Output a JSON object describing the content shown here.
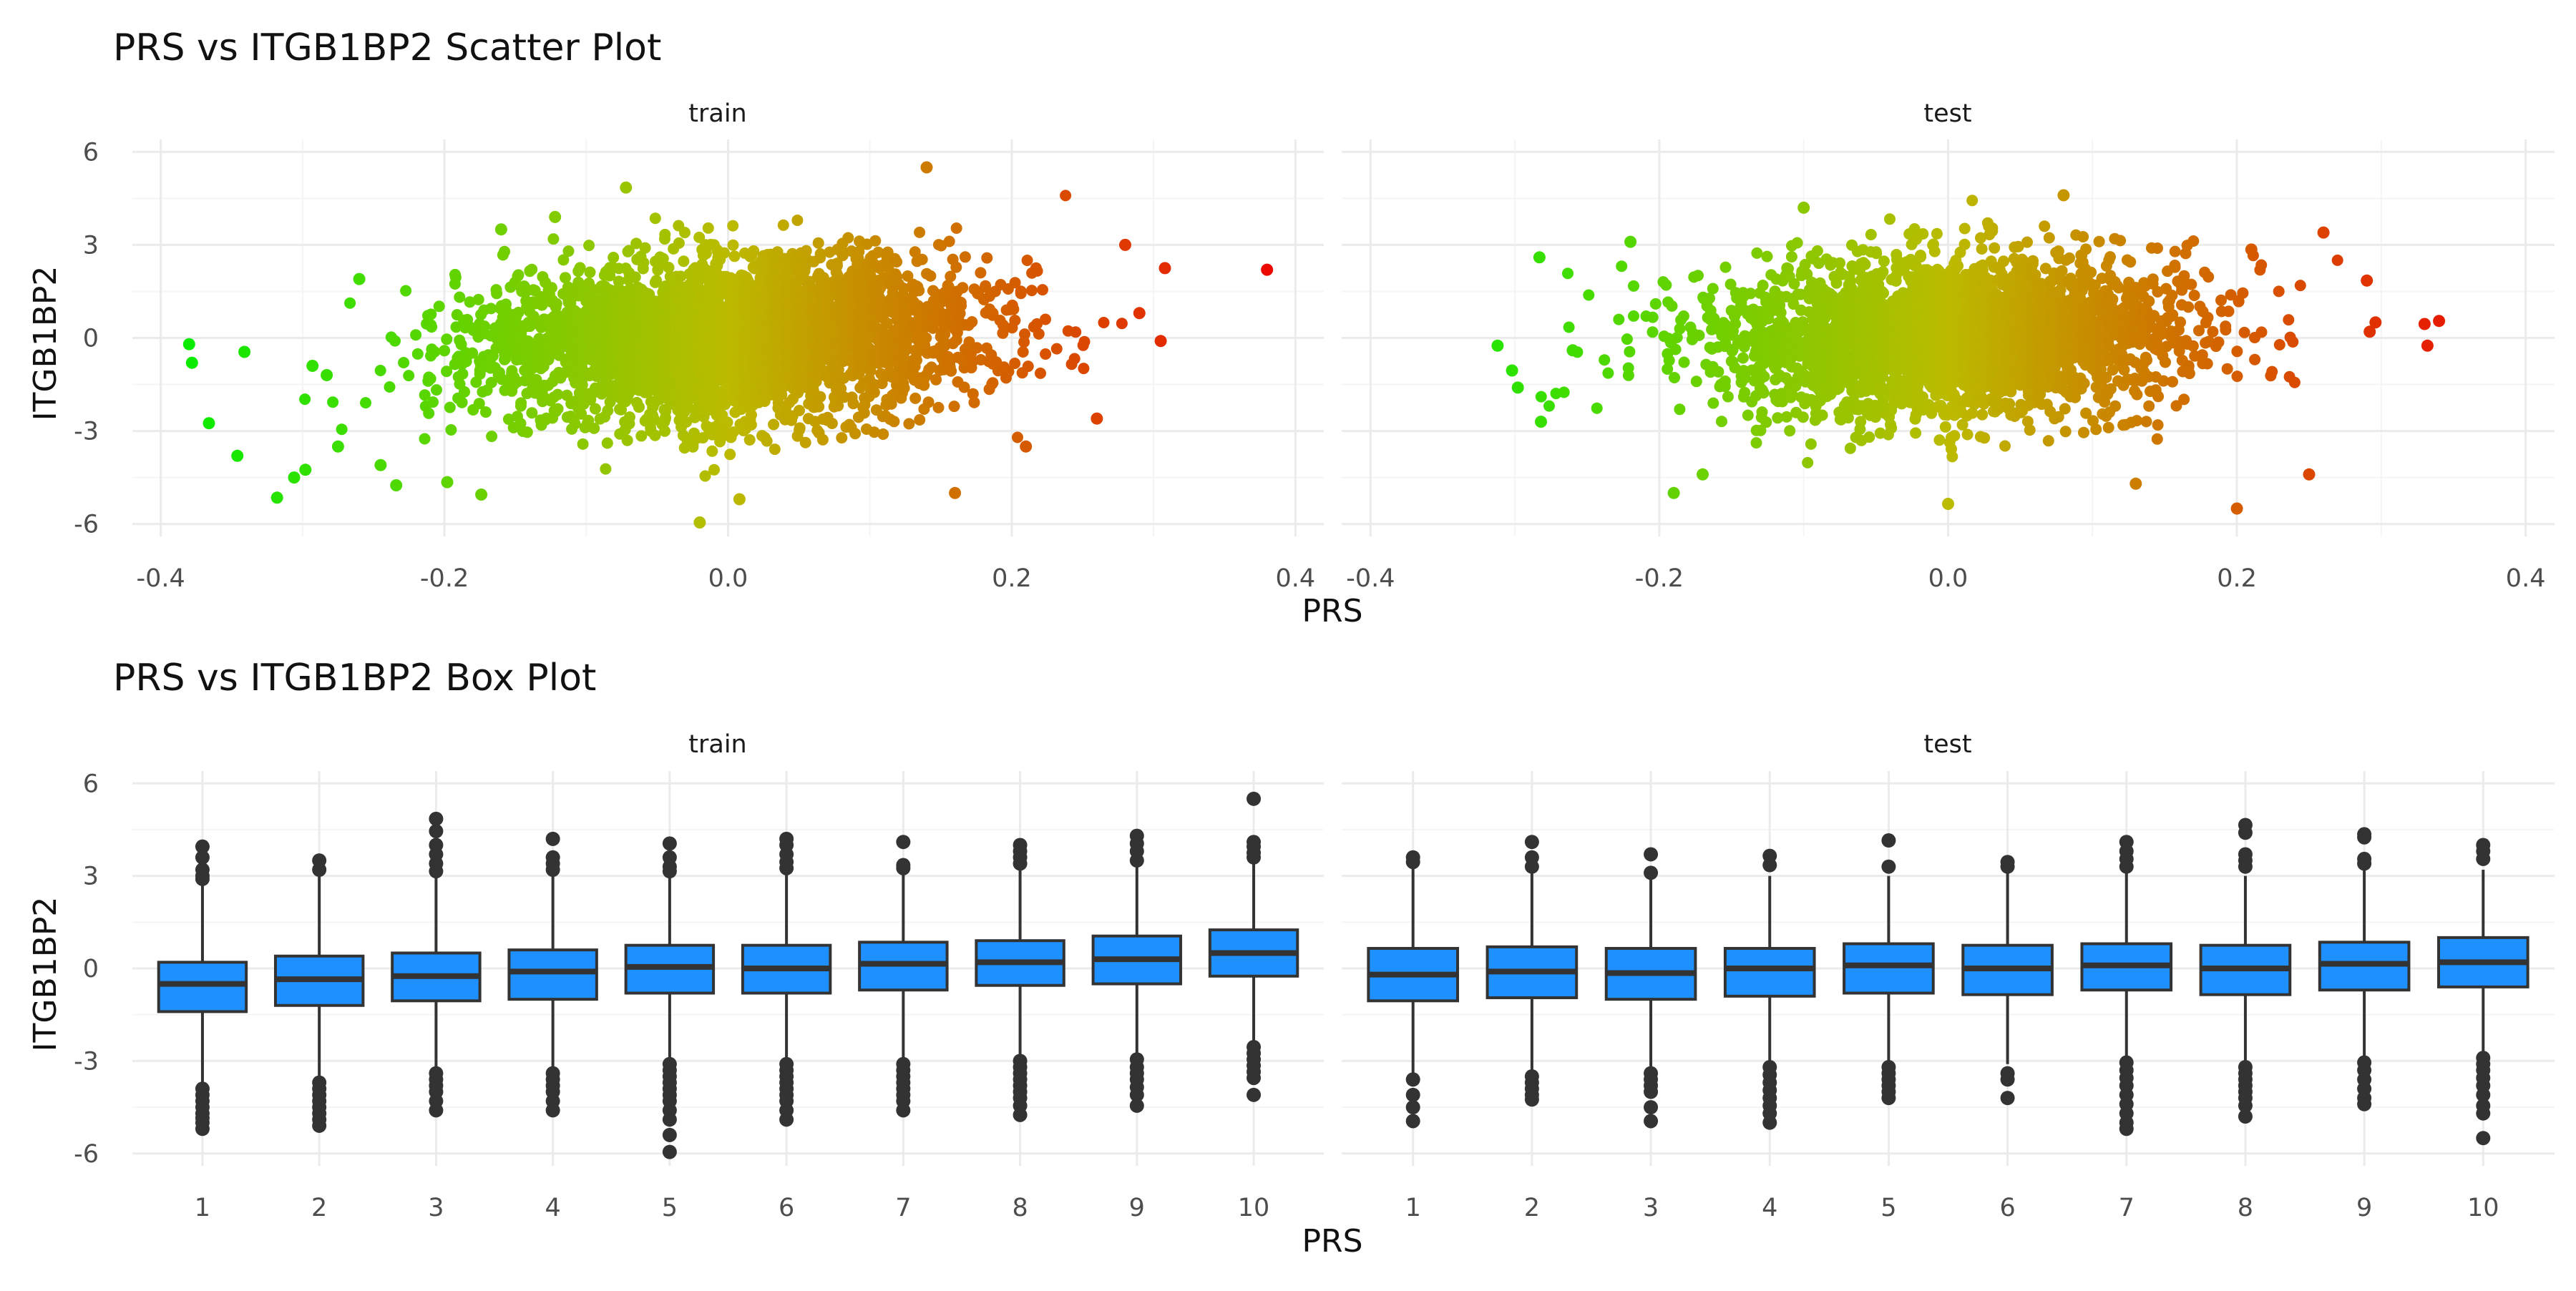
{
  "chart_data": [
    {
      "type": "scatter",
      "title": "PRS vs ITGB1BP2 Scatter Plot",
      "xlabel": "PRS",
      "ylabel": "ITGB1BP2",
      "xlim": [
        -0.4,
        0.4
      ],
      "ylim": [
        -6,
        6
      ],
      "x_ticks": [
        -0.4,
        -0.2,
        0.0,
        0.2,
        0.4
      ],
      "x_tick_labels": [
        "-0.4",
        "-0.2",
        "0.0",
        "0.2",
        "0.4"
      ],
      "y_ticks": [
        -6,
        -3,
        0,
        3,
        6
      ],
      "y_tick_labels": [
        "-6",
        "-3",
        "0",
        "3",
        "6"
      ],
      "grid": true,
      "color_scale": {
        "low": "#00ee00",
        "mid": "#bbbb00",
        "high": "#ee0000",
        "low_value": -0.4,
        "high_value": 0.4
      },
      "panels": [
        {
          "label": "train",
          "points": [
            [
              -0.38,
              -0.2
            ],
            [
              -0.378,
              -0.8
            ],
            [
              -0.366,
              -2.75
            ],
            [
              -0.346,
              -3.8
            ],
            [
              -0.341,
              -0.45
            ],
            [
              -0.318,
              -5.15
            ],
            [
              -0.306,
              -4.5
            ],
            [
              -0.298,
              -4.25
            ],
            [
              -0.293,
              -0.9
            ],
            [
              -0.283,
              -1.2
            ],
            [
              -0.275,
              -3.5
            ],
            [
              -0.26,
              1.9
            ],
            [
              -0.245,
              -4.1
            ],
            [
              -0.234,
              -4.75
            ],
            [
              -0.198,
              -4.65
            ],
            [
              -0.174,
              -5.05
            ],
            [
              -0.16,
              3.5
            ],
            [
              -0.122,
              3.9
            ],
            [
              -0.072,
              4.85
            ],
            [
              -0.02,
              -5.95
            ],
            [
              0.008,
              -5.2
            ],
            [
              0.14,
              5.5
            ],
            [
              0.16,
              -5.0
            ],
            [
              0.21,
              -3.5
            ],
            [
              0.26,
              -2.6
            ],
            [
              0.28,
              3.0
            ],
            [
              0.29,
              0.8
            ],
            [
              0.305,
              -0.1
            ],
            [
              0.308,
              2.25
            ],
            [
              0.38,
              2.2
            ]
          ],
          "cloud": {
            "n": 3600,
            "x_mean": 0.0,
            "x_sd": 0.085,
            "y_mean": 0.0,
            "y_sd": 1.3,
            "slope": 2.5
          }
        },
        {
          "label": "test",
          "points": [
            [
              -0.312,
              -0.25
            ],
            [
              -0.302,
              -1.05
            ],
            [
              -0.298,
              -1.6
            ],
            [
              -0.283,
              2.6
            ],
            [
              -0.282,
              -2.7
            ],
            [
              -0.26,
              -0.4
            ],
            [
              -0.22,
              3.1
            ],
            [
              -0.19,
              -5.0
            ],
            [
              -0.17,
              -4.4
            ],
            [
              -0.1,
              4.2
            ],
            [
              0.0,
              -5.35
            ],
            [
              0.08,
              4.6
            ],
            [
              0.13,
              -4.7
            ],
            [
              0.2,
              -5.5
            ],
            [
              0.21,
              2.85
            ],
            [
              0.25,
              -4.4
            ],
            [
              0.26,
              3.4
            ],
            [
              0.29,
              1.85
            ],
            [
              0.292,
              0.2
            ],
            [
              0.296,
              0.5
            ],
            [
              0.33,
              0.45
            ],
            [
              0.332,
              -0.25
            ],
            [
              0.34,
              0.55
            ]
          ],
          "cloud": {
            "n": 3000,
            "x_mean": 0.0,
            "x_sd": 0.08,
            "y_mean": 0.0,
            "y_sd": 1.25,
            "slope": 1.5
          }
        }
      ]
    },
    {
      "type": "box",
      "title": "PRS vs ITGB1BP2 Box Plot",
      "xlabel": "PRS",
      "ylabel": "ITGB1BP2",
      "categories": [
        "1",
        "2",
        "3",
        "4",
        "5",
        "6",
        "7",
        "8",
        "9",
        "10"
      ],
      "ylim": [
        -6,
        6
      ],
      "y_ticks": [
        -6,
        -3,
        0,
        3,
        6
      ],
      "y_tick_labels": [
        "-6",
        "-3",
        "0",
        "3",
        "6"
      ],
      "grid": true,
      "box_fill": "#1e90ff",
      "box_line": "#333333",
      "panels": [
        {
          "label": "train",
          "boxes": [
            {
              "q1": -1.4,
              "median": -0.5,
              "q3": 0.2,
              "whisker_low": -3.7,
              "whisker_high": 2.7,
              "outliers": [
                3.95,
                3.6,
                3.2,
                3.0,
                2.9,
                -3.9,
                -4.1,
                -4.3,
                -4.5,
                -4.7,
                -4.85,
                -5.0,
                -5.2
              ]
            },
            {
              "q1": -1.2,
              "median": -0.35,
              "q3": 0.4,
              "whisker_low": -3.5,
              "whisker_high": 3.0,
              "outliers": [
                3.5,
                3.2,
                -3.7,
                -3.9,
                -4.1,
                -4.3,
                -4.5,
                -4.7,
                -4.9,
                -5.1
              ]
            },
            {
              "q1": -1.05,
              "median": -0.25,
              "q3": 0.5,
              "whisker_low": -3.25,
              "whisker_high": 3.0,
              "outliers": [
                4.85,
                4.45,
                4.0,
                3.7,
                3.4,
                3.15,
                -3.4,
                -3.6,
                -3.8,
                -4.0,
                -4.3,
                -4.6
              ]
            },
            {
              "q1": -1.0,
              "median": -0.1,
              "q3": 0.6,
              "whisker_low": -3.2,
              "whisker_high": 3.0,
              "outliers": [
                4.2,
                3.6,
                3.4,
                3.2,
                -3.4,
                -3.6,
                -3.8,
                -4.0,
                -4.3,
                -4.6
              ]
            },
            {
              "q1": -0.8,
              "median": 0.05,
              "q3": 0.75,
              "whisker_low": -3.0,
              "whisker_high": 3.05,
              "outliers": [
                4.05,
                3.6,
                3.3,
                3.15,
                -3.1,
                -3.3,
                -3.5,
                -3.7,
                -3.9,
                -4.1,
                -4.3,
                -4.6,
                -4.9,
                -5.4,
                -5.95
              ]
            },
            {
              "q1": -0.8,
              "median": 0.0,
              "q3": 0.75,
              "whisker_low": -3.0,
              "whisker_high": 3.1,
              "outliers": [
                4.2,
                4.0,
                3.7,
                3.45,
                3.25,
                -3.1,
                -3.3,
                -3.5,
                -3.7,
                -3.9,
                -4.1,
                -4.3,
                -4.6,
                -4.9
              ]
            },
            {
              "q1": -0.7,
              "median": 0.15,
              "q3": 0.85,
              "whisker_low": -3.0,
              "whisker_high": 3.1,
              "outliers": [
                4.1,
                3.35,
                3.25,
                -3.1,
                -3.3,
                -3.5,
                -3.7,
                -3.9,
                -4.1,
                -4.3,
                -4.6
              ]
            },
            {
              "q1": -0.55,
              "median": 0.2,
              "q3": 0.9,
              "whisker_low": -2.9,
              "whisker_high": 3.2,
              "outliers": [
                4.0,
                3.8,
                3.6,
                3.4,
                -3.0,
                -3.2,
                -3.4,
                -3.6,
                -3.8,
                -4.0,
                -4.2,
                -4.45,
                -4.75
              ]
            },
            {
              "q1": -0.5,
              "median": 0.3,
              "q3": 1.05,
              "whisker_low": -2.75,
              "whisker_high": 3.3,
              "outliers": [
                4.3,
                4.05,
                3.8,
                3.5,
                -2.95,
                -3.2,
                -3.4,
                -3.6,
                -3.85,
                -4.1,
                -4.45
              ]
            },
            {
              "q1": -0.25,
              "median": 0.5,
              "q3": 1.25,
              "whisker_low": -2.4,
              "whisker_high": 3.4,
              "outliers": [
                5.5,
                4.1,
                3.95,
                3.75,
                3.6,
                -2.55,
                -2.75,
                -2.95,
                -3.15,
                -3.35,
                -3.55,
                -4.1
              ]
            }
          ]
        },
        {
          "label": "test",
          "boxes": [
            {
              "q1": -1.05,
              "median": -0.2,
              "q3": 0.65,
              "whisker_low": -3.4,
              "whisker_high": 3.3,
              "outliers": [
                3.6,
                3.45,
                -3.6,
                -4.1,
                -4.5,
                -4.95
              ]
            },
            {
              "q1": -0.95,
              "median": -0.1,
              "q3": 0.7,
              "whisker_low": -3.3,
              "whisker_high": 3.2,
              "outliers": [
                4.1,
                3.6,
                3.3,
                -3.5,
                -3.7,
                -3.9,
                -4.1,
                -4.25
              ]
            },
            {
              "q1": -1.0,
              "median": -0.15,
              "q3": 0.65,
              "whisker_low": -3.3,
              "whisker_high": 3.0,
              "outliers": [
                3.7,
                3.1,
                -3.4,
                -3.6,
                -3.8,
                -4.0,
                -4.5,
                -4.95
              ]
            },
            {
              "q1": -0.9,
              "median": 0.0,
              "q3": 0.65,
              "whisker_low": -3.0,
              "whisker_high": 3.0,
              "outliers": [
                3.65,
                3.35,
                -3.2,
                -3.45,
                -3.7,
                -3.95,
                -4.2,
                -4.45,
                -4.7,
                -5.0
              ]
            },
            {
              "q1": -0.8,
              "median": 0.1,
              "q3": 0.8,
              "whisker_low": -3.0,
              "whisker_high": 3.0,
              "outliers": [
                4.15,
                3.3,
                -3.2,
                -3.4,
                -3.6,
                -3.8,
                -4.0,
                -4.2
              ]
            },
            {
              "q1": -0.85,
              "median": 0.0,
              "q3": 0.75,
              "whisker_low": -3.1,
              "whisker_high": 3.1,
              "outliers": [
                3.45,
                3.3,
                -3.4,
                -3.6,
                -4.2
              ]
            },
            {
              "q1": -0.7,
              "median": 0.1,
              "q3": 0.8,
              "whisker_low": -2.9,
              "whisker_high": 3.1,
              "outliers": [
                4.1,
                3.8,
                3.55,
                3.3,
                -3.05,
                -3.3,
                -3.55,
                -3.8,
                -4.1,
                -4.4,
                -4.7,
                -5.0,
                -5.2
              ]
            },
            {
              "q1": -0.85,
              "median": 0.0,
              "q3": 0.75,
              "whisker_low": -3.0,
              "whisker_high": 3.0,
              "outliers": [
                4.65,
                4.4,
                3.7,
                3.5,
                3.3,
                -3.2,
                -3.4,
                -3.6,
                -3.8,
                -4.0,
                -4.2,
                -4.45,
                -4.8
              ]
            },
            {
              "q1": -0.7,
              "median": 0.15,
              "q3": 0.85,
              "whisker_low": -2.85,
              "whisker_high": 3.2,
              "outliers": [
                4.35,
                4.25,
                3.55,
                3.4,
                -3.05,
                -3.3,
                -3.6,
                -3.9,
                -4.2,
                -4.4
              ]
            },
            {
              "q1": -0.6,
              "median": 0.2,
              "q3": 1.0,
              "whisker_low": -2.7,
              "whisker_high": 3.2,
              "outliers": [
                4.0,
                3.8,
                3.55,
                -2.9,
                -3.1,
                -3.3,
                -3.55,
                -3.8,
                -4.1,
                -4.45,
                -4.7,
                -5.5
              ]
            }
          ]
        }
      ]
    }
  ]
}
